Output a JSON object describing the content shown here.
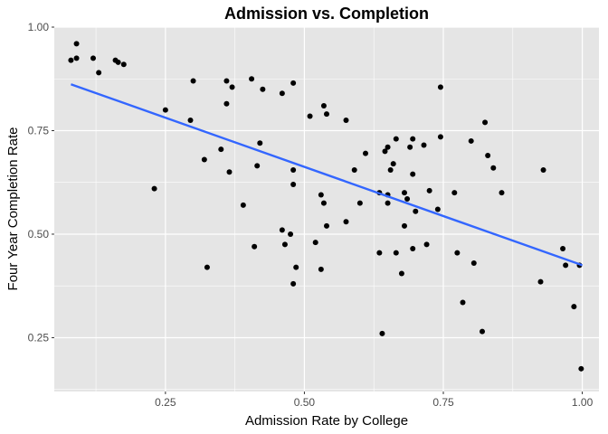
{
  "chart_data": {
    "type": "scatter",
    "title": "Admission vs. Completion",
    "xlabel": "Admission Rate by College",
    "ylabel": "Four Year Completion Rate",
    "xlim": [
      0.05,
      1.03
    ],
    "ylim": [
      0.12,
      1.0
    ],
    "x_ticks": [
      0.25,
      0.5,
      0.75,
      1.0
    ],
    "x_tick_labels": [
      "0.25",
      "0.50",
      "0.75",
      "1.00"
    ],
    "y_ticks": [
      0.25,
      0.5,
      0.75,
      1.0
    ],
    "y_tick_labels": [
      "0.25",
      "0.50",
      "0.75",
      "1.00"
    ],
    "grid": true,
    "colors": {
      "panel": "#e5e5e5",
      "grid": "#ffffff",
      "point": "#000000",
      "trend": "#3366ff"
    },
    "points": [
      [
        0.08,
        0.92
      ],
      [
        0.09,
        0.96
      ],
      [
        0.09,
        0.925
      ],
      [
        0.12,
        0.925
      ],
      [
        0.13,
        0.89
      ],
      [
        0.16,
        0.92
      ],
      [
        0.165,
        0.915
      ],
      [
        0.175,
        0.91
      ],
      [
        0.23,
        0.61
      ],
      [
        0.25,
        0.8
      ],
      [
        0.295,
        0.775
      ],
      [
        0.3,
        0.87
      ],
      [
        0.32,
        0.68
      ],
      [
        0.325,
        0.42
      ],
      [
        0.35,
        0.705
      ],
      [
        0.36,
        0.87
      ],
      [
        0.36,
        0.815
      ],
      [
        0.365,
        0.65
      ],
      [
        0.37,
        0.855
      ],
      [
        0.39,
        0.57
      ],
      [
        0.405,
        0.875
      ],
      [
        0.41,
        0.47
      ],
      [
        0.415,
        0.665
      ],
      [
        0.42,
        0.72
      ],
      [
        0.425,
        0.85
      ],
      [
        0.46,
        0.84
      ],
      [
        0.46,
        0.51
      ],
      [
        0.465,
        0.475
      ],
      [
        0.475,
        0.5
      ],
      [
        0.48,
        0.865
      ],
      [
        0.48,
        0.655
      ],
      [
        0.48,
        0.62
      ],
      [
        0.48,
        0.38
      ],
      [
        0.485,
        0.42
      ],
      [
        0.51,
        0.785
      ],
      [
        0.52,
        0.48
      ],
      [
        0.53,
        0.595
      ],
      [
        0.53,
        0.415
      ],
      [
        0.535,
        0.575
      ],
      [
        0.535,
        0.81
      ],
      [
        0.54,
        0.79
      ],
      [
        0.54,
        0.52
      ],
      [
        0.575,
        0.53
      ],
      [
        0.575,
        0.775
      ],
      [
        0.59,
        0.655
      ],
      [
        0.6,
        0.575
      ],
      [
        0.61,
        0.695
      ],
      [
        0.635,
        0.455
      ],
      [
        0.635,
        0.6
      ],
      [
        0.64,
        0.26
      ],
      [
        0.645,
        0.7
      ],
      [
        0.65,
        0.71
      ],
      [
        0.65,
        0.595
      ],
      [
        0.65,
        0.575
      ],
      [
        0.655,
        0.655
      ],
      [
        0.66,
        0.67
      ],
      [
        0.665,
        0.455
      ],
      [
        0.665,
        0.73
      ],
      [
        0.675,
        0.405
      ],
      [
        0.68,
        0.6
      ],
      [
        0.68,
        0.52
      ],
      [
        0.685,
        0.585
      ],
      [
        0.69,
        0.71
      ],
      [
        0.695,
        0.73
      ],
      [
        0.695,
        0.645
      ],
      [
        0.695,
        0.465
      ],
      [
        0.7,
        0.555
      ],
      [
        0.715,
        0.715
      ],
      [
        0.72,
        0.475
      ],
      [
        0.725,
        0.605
      ],
      [
        0.74,
        0.56
      ],
      [
        0.745,
        0.855
      ],
      [
        0.745,
        0.735
      ],
      [
        0.77,
        0.6
      ],
      [
        0.775,
        0.455
      ],
      [
        0.785,
        0.335
      ],
      [
        0.8,
        0.725
      ],
      [
        0.805,
        0.43
      ],
      [
        0.82,
        0.265
      ],
      [
        0.825,
        0.77
      ],
      [
        0.83,
        0.69
      ],
      [
        0.84,
        0.66
      ],
      [
        0.855,
        0.6
      ],
      [
        0.925,
        0.385
      ],
      [
        0.93,
        0.655
      ],
      [
        0.965,
        0.465
      ],
      [
        0.97,
        0.425
      ],
      [
        0.985,
        0.325
      ],
      [
        0.995,
        0.425
      ],
      [
        0.998,
        0.175
      ]
    ],
    "trend_line": {
      "x": [
        0.08,
        1.0
      ],
      "y": [
        0.862,
        0.425
      ]
    }
  }
}
